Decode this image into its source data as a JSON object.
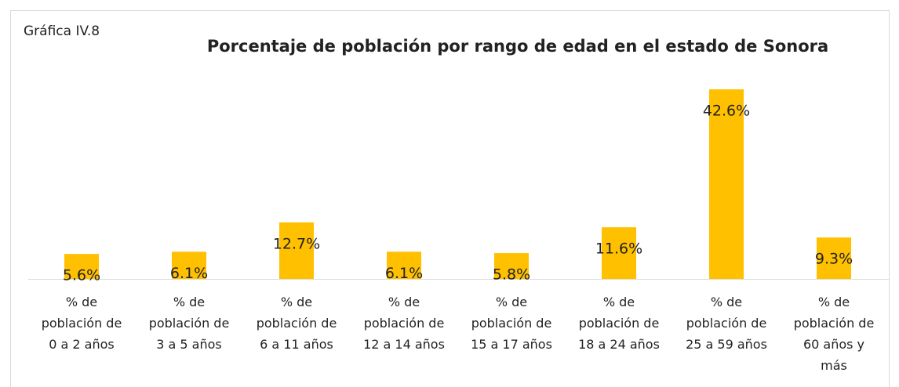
{
  "chart_data": {
    "type": "bar",
    "label": "Gráfica IV.8",
    "title": "Porcentaje de población por rango de edad en el estado de Sonora",
    "categories": [
      "% de población de 0 a 2 años",
      "% de población de 3 a 5 años",
      "% de población de 6 a 11 años",
      "% de población de 12 a 14 años",
      "% de población de 15 a 17 años",
      "% de población de 18 a 24 años",
      "% de población de 25 a 59 años",
      "% de población de 60 años y más"
    ],
    "values": [
      5.6,
      6.1,
      12.7,
      6.1,
      5.8,
      11.6,
      42.6,
      9.3
    ],
    "value_labels": [
      "5.6%",
      "6.1%",
      "12.7%",
      "6.1%",
      "5.8%",
      "11.6%",
      "42.6%",
      "9.3%"
    ],
    "color": "#ffc000"
  }
}
